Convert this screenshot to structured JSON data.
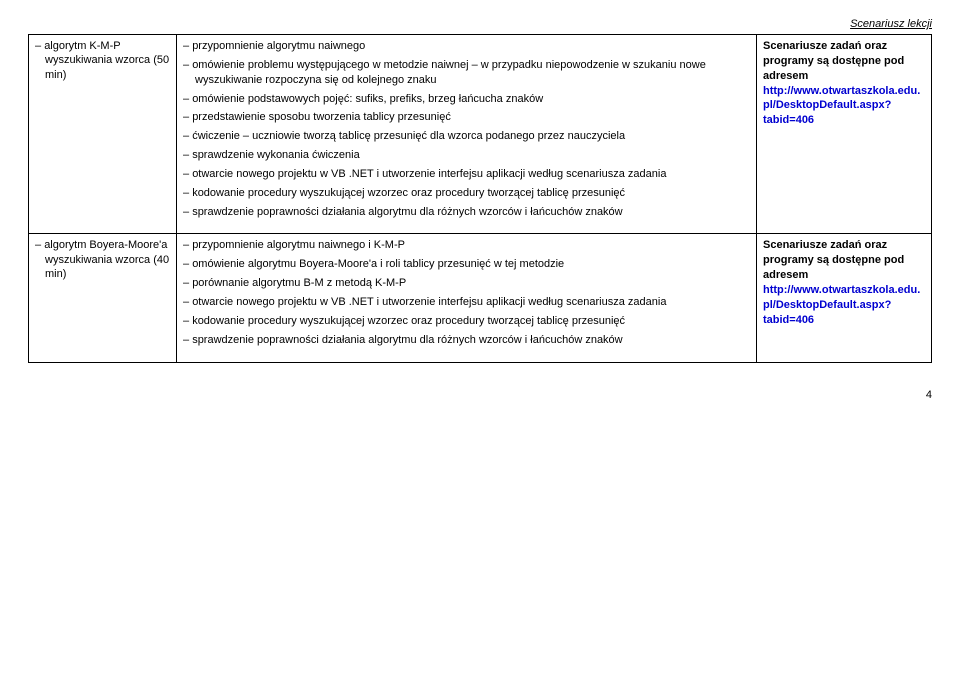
{
  "header": "Scenariusz lekcji",
  "rows": [
    {
      "left": "algorytm K-M-P wyszukiwania wzorca (50 min)",
      "middle": [
        "przypomnienie algorytmu naiwnego",
        "omówienie problemu występującego w metodzie naiwnej – w przypadku niepowodzenie w szukaniu nowe wyszukiwanie rozpoczyna się od kolejnego znaku",
        "omówienie podstawowych pojęć: sufiks, prefiks, brzeg łańcucha znaków",
        "przedstawienie sposobu tworzenia tablicy przesunięć",
        "ćwiczenie – uczniowie tworzą tablicę przesunięć dla wzorca podanego przez nauczyciela",
        "sprawdzenie wykonania ćwiczenia",
        "otwarcie nowego projektu w VB .NET i utworzenie interfejsu aplikacji według scenariusza zadania",
        "kodowanie procedury wyszukującej wzorzec oraz procedury tworzącej tablicę przesunięć",
        "sprawdzenie poprawności działania algorytmu dla różnych wzorców i łańcuchów znaków"
      ],
      "right_bold": "Scenariusze zadań oraz programy są dostępne pod adresem",
      "right_link": "http://www.otwartaszkola.edu.pl/DesktopDefault.aspx?tabid=406"
    },
    {
      "left": "algorytm Boyera-Moore'a wyszukiwania wzorca (40 min)",
      "middle": [
        "przypomnienie algorytmu naiwnego i K-M-P",
        "omówienie algorytmu Boyera-Moore'a i roli tablicy przesunięć w tej metodzie",
        "porównanie algorytmu B-M z metodą K-M-P",
        "otwarcie nowego projektu w VB .NET i utworzenie interfejsu aplikacji według scenariusza zadania",
        "kodowanie procedury wyszukującej wzorzec oraz procedury tworzącej tablicę przesunięć",
        "sprawdzenie poprawności działania algorytmu dla różnych wzorców i łańcuchów znaków"
      ],
      "right_bold": "Scenariusze zadań oraz programy są dostępne pod adresem",
      "right_link": "http://www.otwartaszkola.edu.pl/DesktopDefault.aspx?tabid=406"
    }
  ],
  "page_number": "4"
}
